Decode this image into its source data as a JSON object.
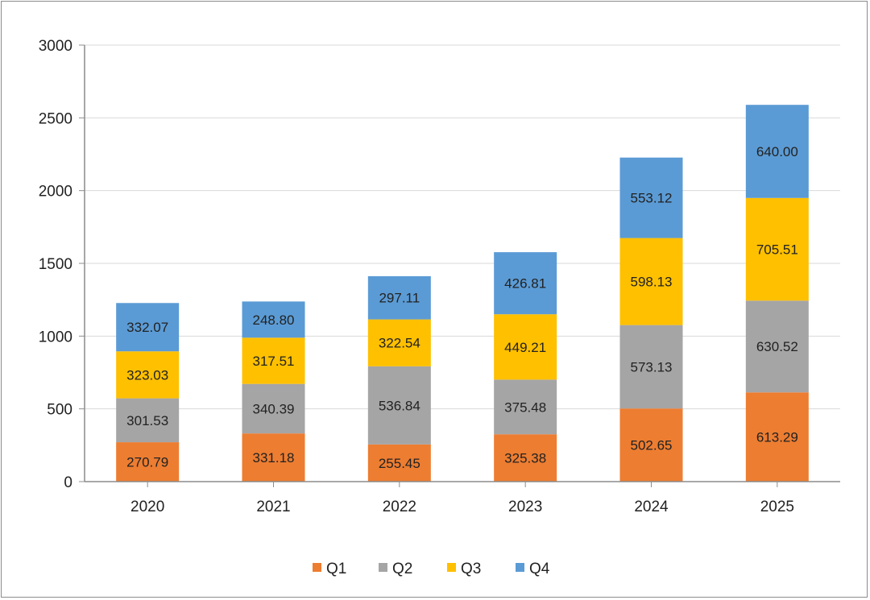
{
  "chart_data": {
    "type": "bar",
    "stacked": true,
    "title": "",
    "xlabel": "",
    "ylabel": "",
    "categories": [
      "2020",
      "2021",
      "2022",
      "2023",
      "2024",
      "2025"
    ],
    "series": [
      {
        "name": "Q1",
        "color": "#ED7D31",
        "values": [
          270.79,
          331.18,
          255.45,
          325.38,
          502.65,
          613.29
        ]
      },
      {
        "name": "Q2",
        "color": "#A5A5A5",
        "values": [
          301.53,
          340.39,
          536.84,
          375.48,
          573.13,
          630.52
        ]
      },
      {
        "name": "Q3",
        "color": "#FFC000",
        "values": [
          323.03,
          317.51,
          322.54,
          449.21,
          598.13,
          705.51
        ]
      },
      {
        "name": "Q4",
        "color": "#5B9BD5",
        "values": [
          332.07,
          248.8,
          297.11,
          426.81,
          553.12,
          640.0
        ]
      }
    ],
    "data_labels": [
      [
        "270.79",
        "331.18",
        "255.45",
        "325.38",
        "502.65",
        "613.29"
      ],
      [
        "301.53",
        "340.39",
        "536.84",
        "375.48",
        "573.13",
        "630.52"
      ],
      [
        "323.03",
        "317.51",
        "322.54",
        "449.21",
        "598.13",
        "705.51"
      ],
      [
        "332.07",
        "248.80",
        "297.11",
        "426.81",
        "553.12",
        "640.00"
      ]
    ],
    "ylim": [
      0,
      3000
    ],
    "yticks": [
      0,
      500,
      1000,
      1500,
      2000,
      2500,
      3000
    ],
    "ytick_labels": [
      "0",
      "500",
      "1000",
      "1500",
      "2000",
      "2500",
      "3000"
    ],
    "grid": true,
    "legend": {
      "position": "bottom",
      "entries": [
        "Q1",
        "Q2",
        "Q3",
        "Q4"
      ]
    }
  }
}
